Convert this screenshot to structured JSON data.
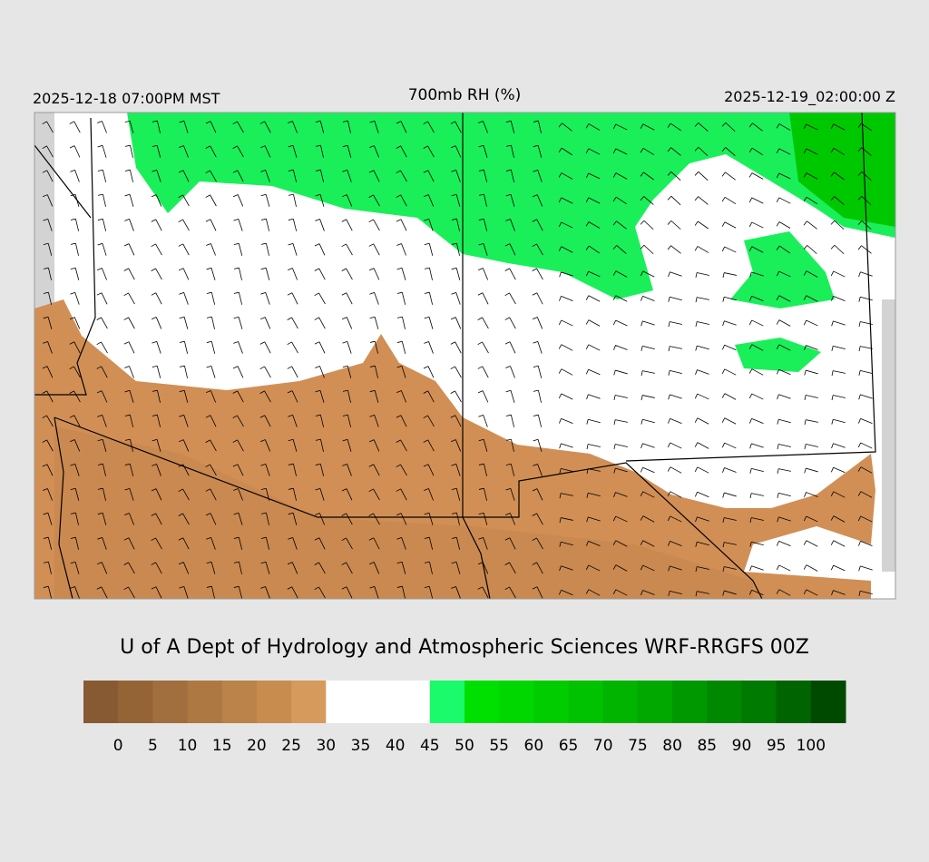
{
  "header": {
    "left": "2025-12-18 07:00PM MST",
    "title": "700mb RH (%)",
    "right": "2025-12-19_02:00:00 Z"
  },
  "credit": "U of A Dept of Hydrology and Atmospheric Sciences WRF-RRGFS 00Z",
  "colorbar": {
    "labels": [
      0,
      5,
      10,
      15,
      20,
      25,
      30,
      35,
      40,
      45,
      50,
      55,
      60,
      65,
      70,
      75,
      80,
      85,
      90,
      95,
      100
    ],
    "colors": [
      "#875a33",
      "#946437",
      "#a16e3e",
      "#ae7843",
      "#bb8249",
      "#c98c4f",
      "#d69a5c",
      "#ffffff",
      "#ffffff",
      "#ffffff",
      "#1afa6a",
      "#00e000",
      "#00d600",
      "#00cc00",
      "#00c200",
      "#00b400",
      "#00a800",
      "#009800",
      "#008800",
      "#007a00",
      "#006400",
      "#004a00"
    ]
  }
}
